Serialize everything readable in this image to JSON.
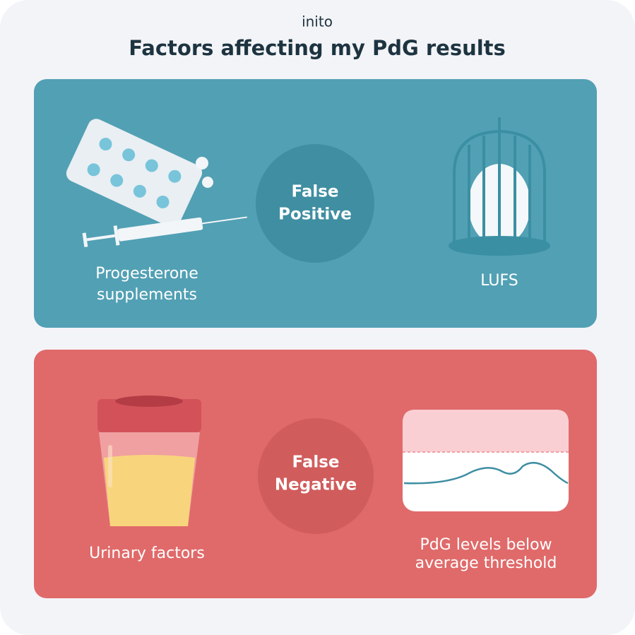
{
  "brand": "inito",
  "title": "Factors affecting my PdG results",
  "panels": [
    {
      "center": [
        "False",
        "Positive"
      ],
      "items": [
        {
          "label": [
            "Progesterone",
            "supplements"
          ]
        },
        {
          "label": [
            "LUFS"
          ]
        }
      ]
    },
    {
      "center": [
        "False",
        "Negative"
      ],
      "items": [
        {
          "label": [
            "Urinary factors"
          ]
        },
        {
          "label": [
            "PdG levels below",
            "average threshold"
          ]
        }
      ]
    }
  ]
}
